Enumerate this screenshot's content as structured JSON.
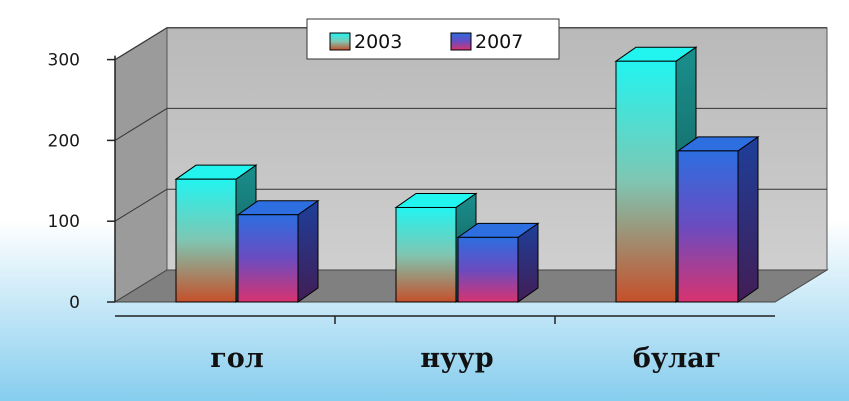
{
  "chart_data": {
    "type": "bar",
    "categories": [
      "гол",
      "нуур",
      "булаг"
    ],
    "series": [
      {
        "name": "2003",
        "values": [
          152,
          117,
          298
        ]
      },
      {
        "name": "2007",
        "values": [
          108,
          80,
          187
        ]
      }
    ],
    "ylim": [
      0,
      300
    ],
    "yticks": [
      "0",
      "100",
      "200",
      "300"
    ],
    "grid": true,
    "legend_position": "top-center",
    "colors": {
      "series_2003_top": "#22f4f0",
      "series_2003_mid": "#7fc6b2",
      "series_2003_bottom": "#c5502a",
      "series_2007_top": "#2d6ee0",
      "series_2007_mid": "#6a4cc0",
      "series_2007_bottom": "#d8336f",
      "back_wall": "#c0c0c0",
      "floor": "#808080",
      "background_top": "#ffffff",
      "background_bottom": "#86cdee"
    }
  }
}
